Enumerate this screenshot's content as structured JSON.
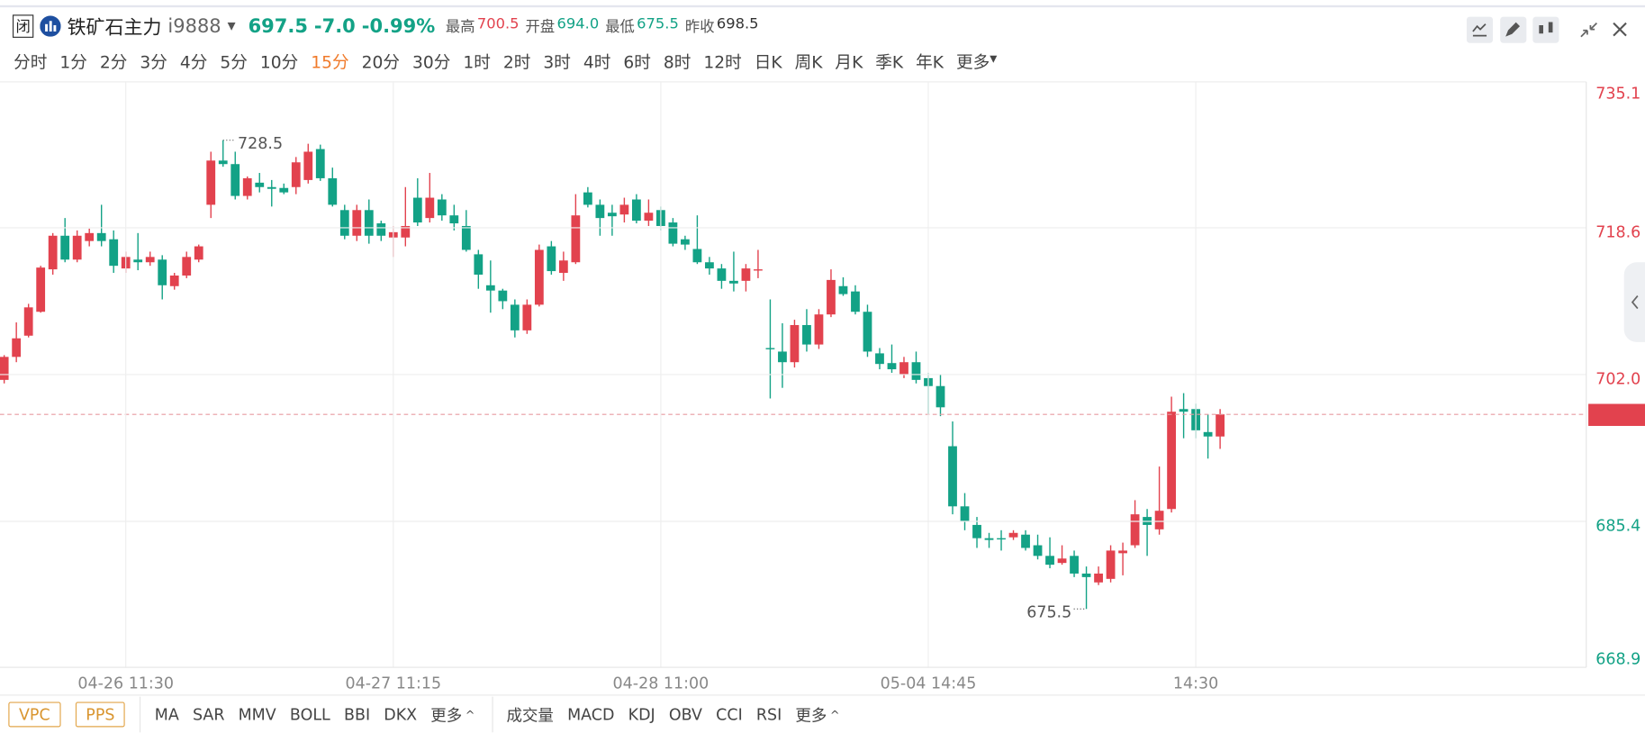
{
  "header": {
    "status": "闭",
    "name": "铁矿石主力",
    "code": "i9888",
    "price": "697.5",
    "change": "-7.0",
    "change_pct": "-0.99%",
    "stats": [
      {
        "label": "最高",
        "value": "700.5"
      },
      {
        "label": "开盘",
        "value": "694.0"
      },
      {
        "label": "最低",
        "value": "675.5"
      },
      {
        "label": "昨收",
        "value": "698.5"
      }
    ]
  },
  "periods": [
    {
      "label": "分时"
    },
    {
      "label": "1分"
    },
    {
      "label": "2分"
    },
    {
      "label": "3分"
    },
    {
      "label": "4分"
    },
    {
      "label": "5分"
    },
    {
      "label": "10分"
    },
    {
      "label": "15分",
      "active": true
    },
    {
      "label": "20分"
    },
    {
      "label": "30分"
    },
    {
      "label": "1时"
    },
    {
      "label": "2时"
    },
    {
      "label": "3时"
    },
    {
      "label": "4时"
    },
    {
      "label": "6时"
    },
    {
      "label": "8时"
    },
    {
      "label": "12时"
    },
    {
      "label": "日K"
    },
    {
      "label": "周K"
    },
    {
      "label": "月K"
    },
    {
      "label": "季K"
    },
    {
      "label": "年K"
    },
    {
      "label": "更多"
    }
  ],
  "toolbar": {
    "boxed": [
      "VPC",
      "PPS"
    ],
    "main_indicators": [
      "MA",
      "SAR",
      "MMV",
      "BOLL",
      "BBI",
      "DKX",
      "更多"
    ],
    "sub_indicators": [
      "成交量",
      "MACD",
      "KDJ",
      "OBV",
      "CCI",
      "RSI",
      "更多"
    ]
  },
  "chart_data": {
    "type": "candlestick",
    "up_color": "#e2424e",
    "down_color": "#13a286",
    "categories": [
      null,
      null,
      null,
      null,
      null,
      null,
      null,
      null,
      null,
      null,
      "04-26 11:30",
      null,
      null,
      null,
      null,
      null,
      null,
      null,
      null,
      null,
      null,
      null,
      null,
      null,
      null,
      null,
      null,
      null,
      null,
      null,
      null,
      null,
      "04-27 11:15",
      null,
      null,
      null,
      null,
      null,
      null,
      null,
      null,
      null,
      null,
      null,
      null,
      null,
      null,
      null,
      null,
      null,
      null,
      null,
      null,
      null,
      "04-28 11:00",
      null,
      null,
      null,
      null,
      null,
      null,
      null,
      null,
      null,
      null,
      null,
      null,
      null,
      null,
      null,
      null,
      null,
      null,
      null,
      null,
      null,
      "05-04 14:45",
      null,
      null,
      null,
      null,
      null,
      null,
      null,
      null,
      null,
      null,
      null,
      null,
      null,
      null,
      null,
      null,
      null,
      null,
      null,
      null,
      null,
      "14:30",
      null,
      null
    ],
    "open": [
      701.4,
      704.0,
      706.4,
      709.1,
      713.9,
      717.7,
      715.0,
      717.1,
      718.0,
      717.3,
      714.0,
      715.0,
      714.7,
      715.0,
      712.0,
      713.2,
      715.0,
      721.2,
      726.2,
      725.8,
      722.2,
      723.7,
      723.2,
      723.1,
      723.2,
      724.0,
      727.5,
      724.2,
      720.6,
      717.7,
      720.6,
      719.1,
      717.5,
      717.5,
      722.0,
      719.7,
      721.8,
      720.0,
      718.8,
      715.6,
      712.1,
      711.5,
      709.9,
      707.0,
      709.9,
      716.5,
      713.5,
      714.7,
      722.6,
      721.2,
      720.3,
      720.1,
      721.8,
      719.4,
      720.6,
      719.2,
      717.3,
      716.2,
      714.7,
      714.0,
      712.6,
      712.6,
      713.8,
      705.0,
      704.6,
      703.4,
      707.6,
      705.4,
      708.8,
      712.0,
      711.4,
      709.1,
      704.4,
      703.3,
      702.0,
      703.4,
      701.6,
      700.7,
      693.9,
      687.1,
      685.0,
      683.5,
      683.5,
      683.6,
      683.9,
      682.7,
      681.5,
      680.7,
      681.5,
      679.5,
      678.5,
      678.9,
      681.8,
      682.7,
      685.9,
      684.5,
      686.8,
      698.1,
      698.1,
      695.5,
      695.0
    ],
    "high": [
      704.2,
      707.9,
      710.0,
      714.3,
      718.0,
      719.7,
      718.3,
      718.5,
      721.2,
      718.3,
      715.9,
      718.0,
      715.9,
      715.5,
      713.5,
      715.9,
      716.7,
      727.2,
      728.5,
      727.2,
      724.4,
      724.8,
      724.0,
      723.6,
      726.6,
      728.1,
      728.0,
      725.4,
      721.2,
      721.2,
      721.8,
      719.4,
      718.8,
      723.2,
      724.2,
      724.8,
      722.4,
      721.2,
      720.6,
      716.1,
      714.9,
      711.7,
      710.5,
      710.5,
      716.7,
      717.1,
      715.9,
      722.4,
      723.2,
      721.8,
      721.2,
      722.0,
      722.4,
      721.8,
      721.0,
      719.7,
      717.7,
      720.0,
      715.3,
      714.5,
      715.9,
      714.5,
      716.1,
      710.5,
      707.8,
      708.2,
      709.4,
      709.4,
      713.9,
      713.0,
      712.1,
      709.9,
      705.0,
      705.4,
      704.0,
      704.6,
      702.2,
      702.0,
      696.7,
      688.6,
      685.9,
      684.1,
      684.4,
      684.4,
      684.4,
      683.9,
      683.6,
      682.7,
      682.1,
      680.3,
      680.3,
      682.7,
      683.0,
      687.8,
      686.8,
      691.6,
      699.5,
      699.9,
      698.7,
      697.5,
      698.1
    ],
    "low": [
      701.0,
      703.4,
      706.2,
      709.0,
      713.3,
      714.7,
      714.7,
      716.5,
      716.5,
      713.5,
      713.5,
      713.8,
      714.3,
      710.5,
      711.6,
      712.9,
      714.7,
      719.7,
      725.5,
      721.8,
      721.8,
      722.6,
      721.0,
      722.4,
      722.4,
      723.6,
      723.9,
      721.0,
      717.3,
      717.1,
      716.8,
      717.1,
      715.3,
      716.5,
      718.8,
      719.2,
      719.4,
      718.3,
      715.9,
      711.7,
      709.0,
      709.4,
      706.2,
      706.6,
      709.7,
      713.3,
      712.6,
      714.5,
      720.9,
      717.7,
      717.7,
      719.2,
      719.1,
      718.8,
      718.3,
      716.5,
      716.1,
      714.5,
      713.3,
      711.7,
      711.4,
      711.4,
      712.9,
      699.3,
      700.5,
      702.8,
      704.6,
      704.9,
      708.5,
      710.9,
      708.8,
      704.0,
      702.6,
      702.2,
      701.6,
      701.0,
      697.5,
      697.3,
      686.2,
      684.4,
      682.4,
      682.4,
      682.1,
      683.3,
      682.1,
      681.1,
      680.1,
      680.5,
      679.1,
      675.5,
      678.2,
      678.5,
      679.3,
      682.4,
      681.5,
      683.9,
      686.4,
      694.8,
      694.8,
      692.5,
      693.6
    ],
    "close": [
      704.0,
      706.1,
      709.6,
      714.1,
      717.7,
      715.0,
      717.7,
      718.0,
      717.1,
      714.3,
      715.3,
      714.7,
      715.3,
      712.1,
      713.2,
      715.3,
      716.5,
      726.2,
      725.8,
      722.2,
      724.2,
      723.2,
      723.0,
      722.6,
      726.0,
      727.2,
      724.2,
      721.2,
      717.7,
      720.6,
      717.7,
      717.7,
      718.1,
      718.8,
      719.2,
      722.0,
      720.0,
      719.1,
      716.1,
      713.3,
      711.5,
      710.3,
      707.0,
      709.9,
      716.1,
      713.7,
      714.9,
      720.0,
      721.2,
      719.7,
      719.9,
      721.2,
      719.4,
      720.3,
      718.8,
      716.8,
      716.7,
      714.7,
      714.0,
      712.6,
      712.3,
      714.0,
      713.9,
      704.9,
      703.4,
      707.6,
      705.4,
      708.8,
      712.7,
      711.1,
      709.1,
      704.6,
      703.2,
      702.6,
      703.4,
      701.4,
      700.7,
      698.3,
      687.1,
      685.4,
      683.5,
      683.3,
      683.4,
      684.1,
      682.4,
      681.5,
      680.5,
      681.2,
      679.5,
      679.1,
      679.5,
      682.1,
      682.1,
      686.2,
      685.0,
      686.6,
      697.8,
      697.8,
      695.7,
      695.0,
      697.5
    ],
    "high_label": 728.5,
    "low_label": 675.5,
    "last_price": 697.5,
    "ylim": [
      668.9,
      735.1
    ],
    "yticks": [
      735.1,
      718.6,
      {
        "value": 702,
        "label": "702.0"
      },
      685.4,
      668.9
    ],
    "grid": true
  }
}
